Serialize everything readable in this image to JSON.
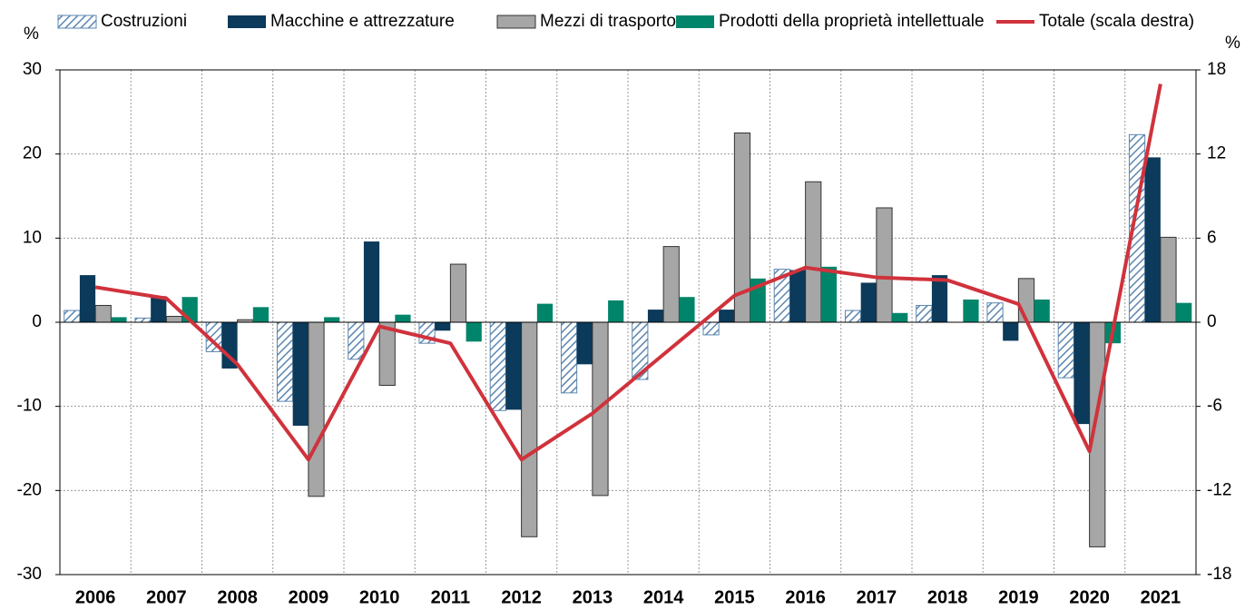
{
  "chart_data": {
    "type": "bar",
    "y_label": "%",
    "y2_label": "%",
    "categories": [
      "2006",
      "2007",
      "2008",
      "2009",
      "2010",
      "2011",
      "2012",
      "2013",
      "2014",
      "2015",
      "2016",
      "2017",
      "2018",
      "2019",
      "2020",
      "2021"
    ],
    "series": [
      {
        "name": "Costruzioni",
        "color": "#5b86b0",
        "pattern": "hatch",
        "values": [
          1.4,
          0.5,
          -3.5,
          -9.4,
          -4.4,
          -2.5,
          -10.5,
          -8.4,
          -6.8,
          -1.5,
          6.3,
          1.4,
          2.0,
          2.3,
          -6.6,
          22.3
        ]
      },
      {
        "name": "Macchine e attrezzature",
        "color": "#0b3a5a",
        "values": [
          5.6,
          3.1,
          -5.5,
          -12.3,
          9.6,
          -1.0,
          -10.4,
          -5.0,
          1.5,
          1.5,
          6.2,
          4.7,
          5.6,
          -2.2,
          -12.1,
          19.6
        ]
      },
      {
        "name": "Mezzi di trasporto",
        "color": "#a6a6a6",
        "values": [
          2.0,
          0.7,
          0.3,
          -20.7,
          -7.5,
          6.9,
          -25.5,
          -20.6,
          9.0,
          22.5,
          16.7,
          13.6,
          0,
          5.2,
          -26.7,
          10.1
        ]
      },
      {
        "name": "Prodotti della proprietà intellettuale",
        "color": "#00856a",
        "values": [
          0.6,
          3.0,
          1.8,
          0.6,
          0.9,
          -2.3,
          2.2,
          2.6,
          3.0,
          5.2,
          6.6,
          1.1,
          2.7,
          2.7,
          -2.5,
          2.3
        ]
      },
      {
        "name": "Totale (scala destra)",
        "color": "#d0323c",
        "type": "line",
        "axis": "y2",
        "values": [
          2.5,
          1.7,
          -3.0,
          -9.8,
          -0.3,
          -1.5,
          -9.8,
          -6.5,
          -2.3,
          1.9,
          3.9,
          3.2,
          3.0,
          1.3,
          -9.2,
          17.0
        ]
      }
    ],
    "ylim": [
      -30,
      30
    ],
    "yticks": [
      -30,
      -20,
      -10,
      0,
      10,
      20,
      30
    ],
    "y2lim": [
      -18,
      18
    ],
    "y2ticks": [
      -18,
      -12,
      -6,
      0,
      6,
      12,
      18
    ],
    "grid": true,
    "legend": "top"
  }
}
